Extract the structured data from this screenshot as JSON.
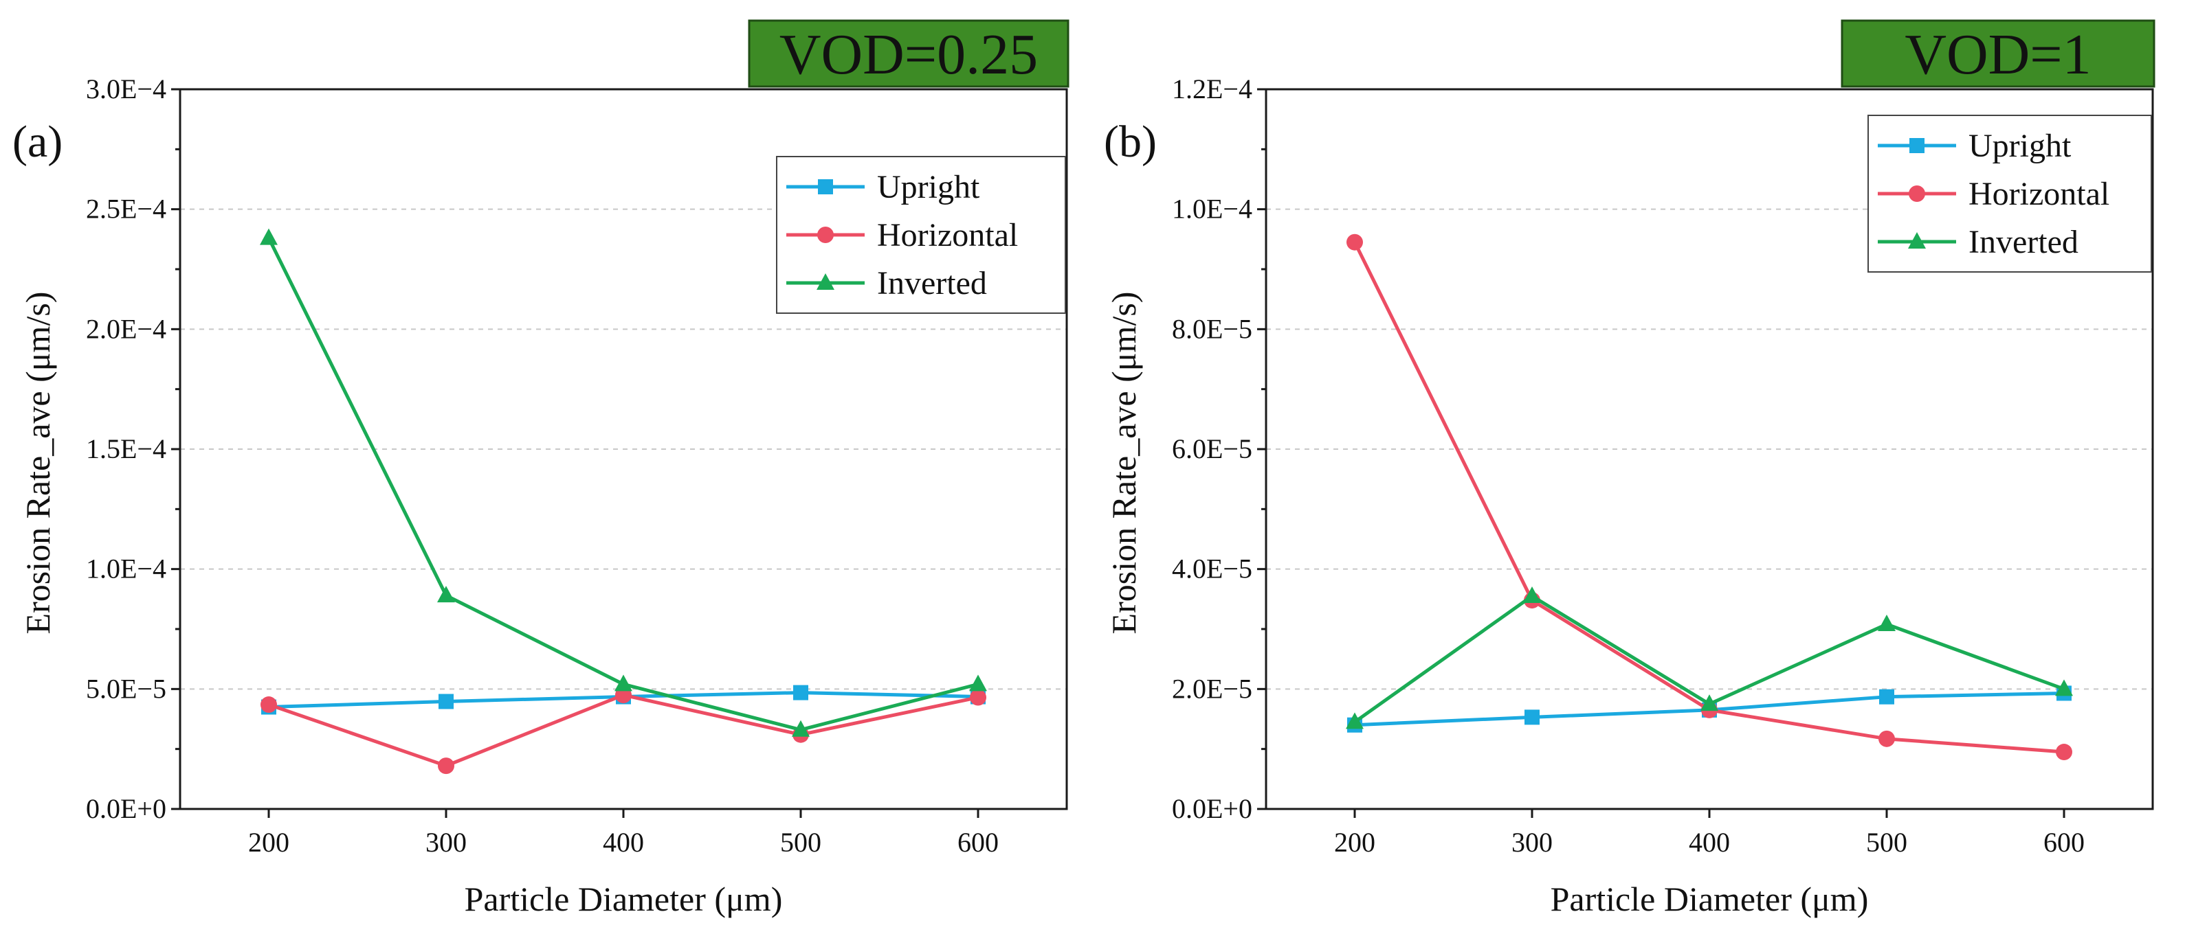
{
  "chart_data": [
    {
      "type": "line",
      "panel_label": "(a)",
      "banner": "VOD=0.25",
      "xlabel": "Particle Diameter (μm)",
      "ylabel": "Erosion Rate_ave  (μm/s)",
      "x": [
        200,
        300,
        400,
        500,
        600
      ],
      "xlim": [
        150,
        650
      ],
      "ylim": [
        0,
        0.0003
      ],
      "yticks": [
        0,
        5e-05,
        0.0001,
        0.00015,
        0.0002,
        0.00025,
        0.0003
      ],
      "ytick_labels": [
        "0.0E+0",
        "5.0E−5",
        "1.0E−4",
        "1.5E−4",
        "2.0E−4",
        "2.5E−4",
        "3.0E−4"
      ],
      "grid": true,
      "legend_position": "top-right",
      "series": [
        {
          "name": "Upright",
          "marker": "square",
          "color": "#1ba9e0",
          "values": [
            4.25e-05,
            4.48e-05,
            4.68e-05,
            4.85e-05,
            4.68e-05
          ]
        },
        {
          "name": "Horizontal",
          "marker": "circle",
          "color": "#ec4d63",
          "values": [
            4.35e-05,
            1.8e-05,
            4.75e-05,
            3.1e-05,
            4.65e-05
          ]
        },
        {
          "name": "Inverted",
          "marker": "triangle",
          "color": "#1aab55",
          "values": [
            0.000238,
            8.9e-05,
            5.2e-05,
            3.3e-05,
            5.2e-05
          ]
        }
      ]
    },
    {
      "type": "line",
      "panel_label": "(b)",
      "banner": "VOD=1",
      "xlabel": "Particle Diameter (μm)",
      "ylabel": "Erosion Rate_ave  (μm/s)",
      "x": [
        200,
        300,
        400,
        500,
        600
      ],
      "xlim": [
        150,
        650
      ],
      "ylim": [
        0,
        0.00012
      ],
      "yticks": [
        0,
        2e-05,
        4e-05,
        6e-05,
        8e-05,
        0.0001,
        0.00012
      ],
      "ytick_labels": [
        "0.0E+0",
        "2.0E−5",
        "4.0E−5",
        "6.0E−5",
        "8.0E−5",
        "1.0E−4",
        "1.2E−4"
      ],
      "grid": true,
      "legend_position": "top-right",
      "series": [
        {
          "name": "Upright",
          "marker": "square",
          "color": "#1ba9e0",
          "values": [
            1.4e-05,
            1.53e-05,
            1.65e-05,
            1.87e-05,
            1.93e-05
          ]
        },
        {
          "name": "Horizontal",
          "marker": "circle",
          "color": "#ec4d63",
          "values": [
            9.45e-05,
            3.48e-05,
            1.65e-05,
            1.17e-05,
            9.5e-06
          ]
        },
        {
          "name": "Inverted",
          "marker": "triangle",
          "color": "#1aab55",
          "values": [
            1.45e-05,
            3.55e-05,
            1.75e-05,
            3.08e-05,
            2e-05
          ]
        }
      ]
    }
  ],
  "colors": {
    "banner_fill": "#3d8b25",
    "banner_border": "#1f4d14"
  }
}
